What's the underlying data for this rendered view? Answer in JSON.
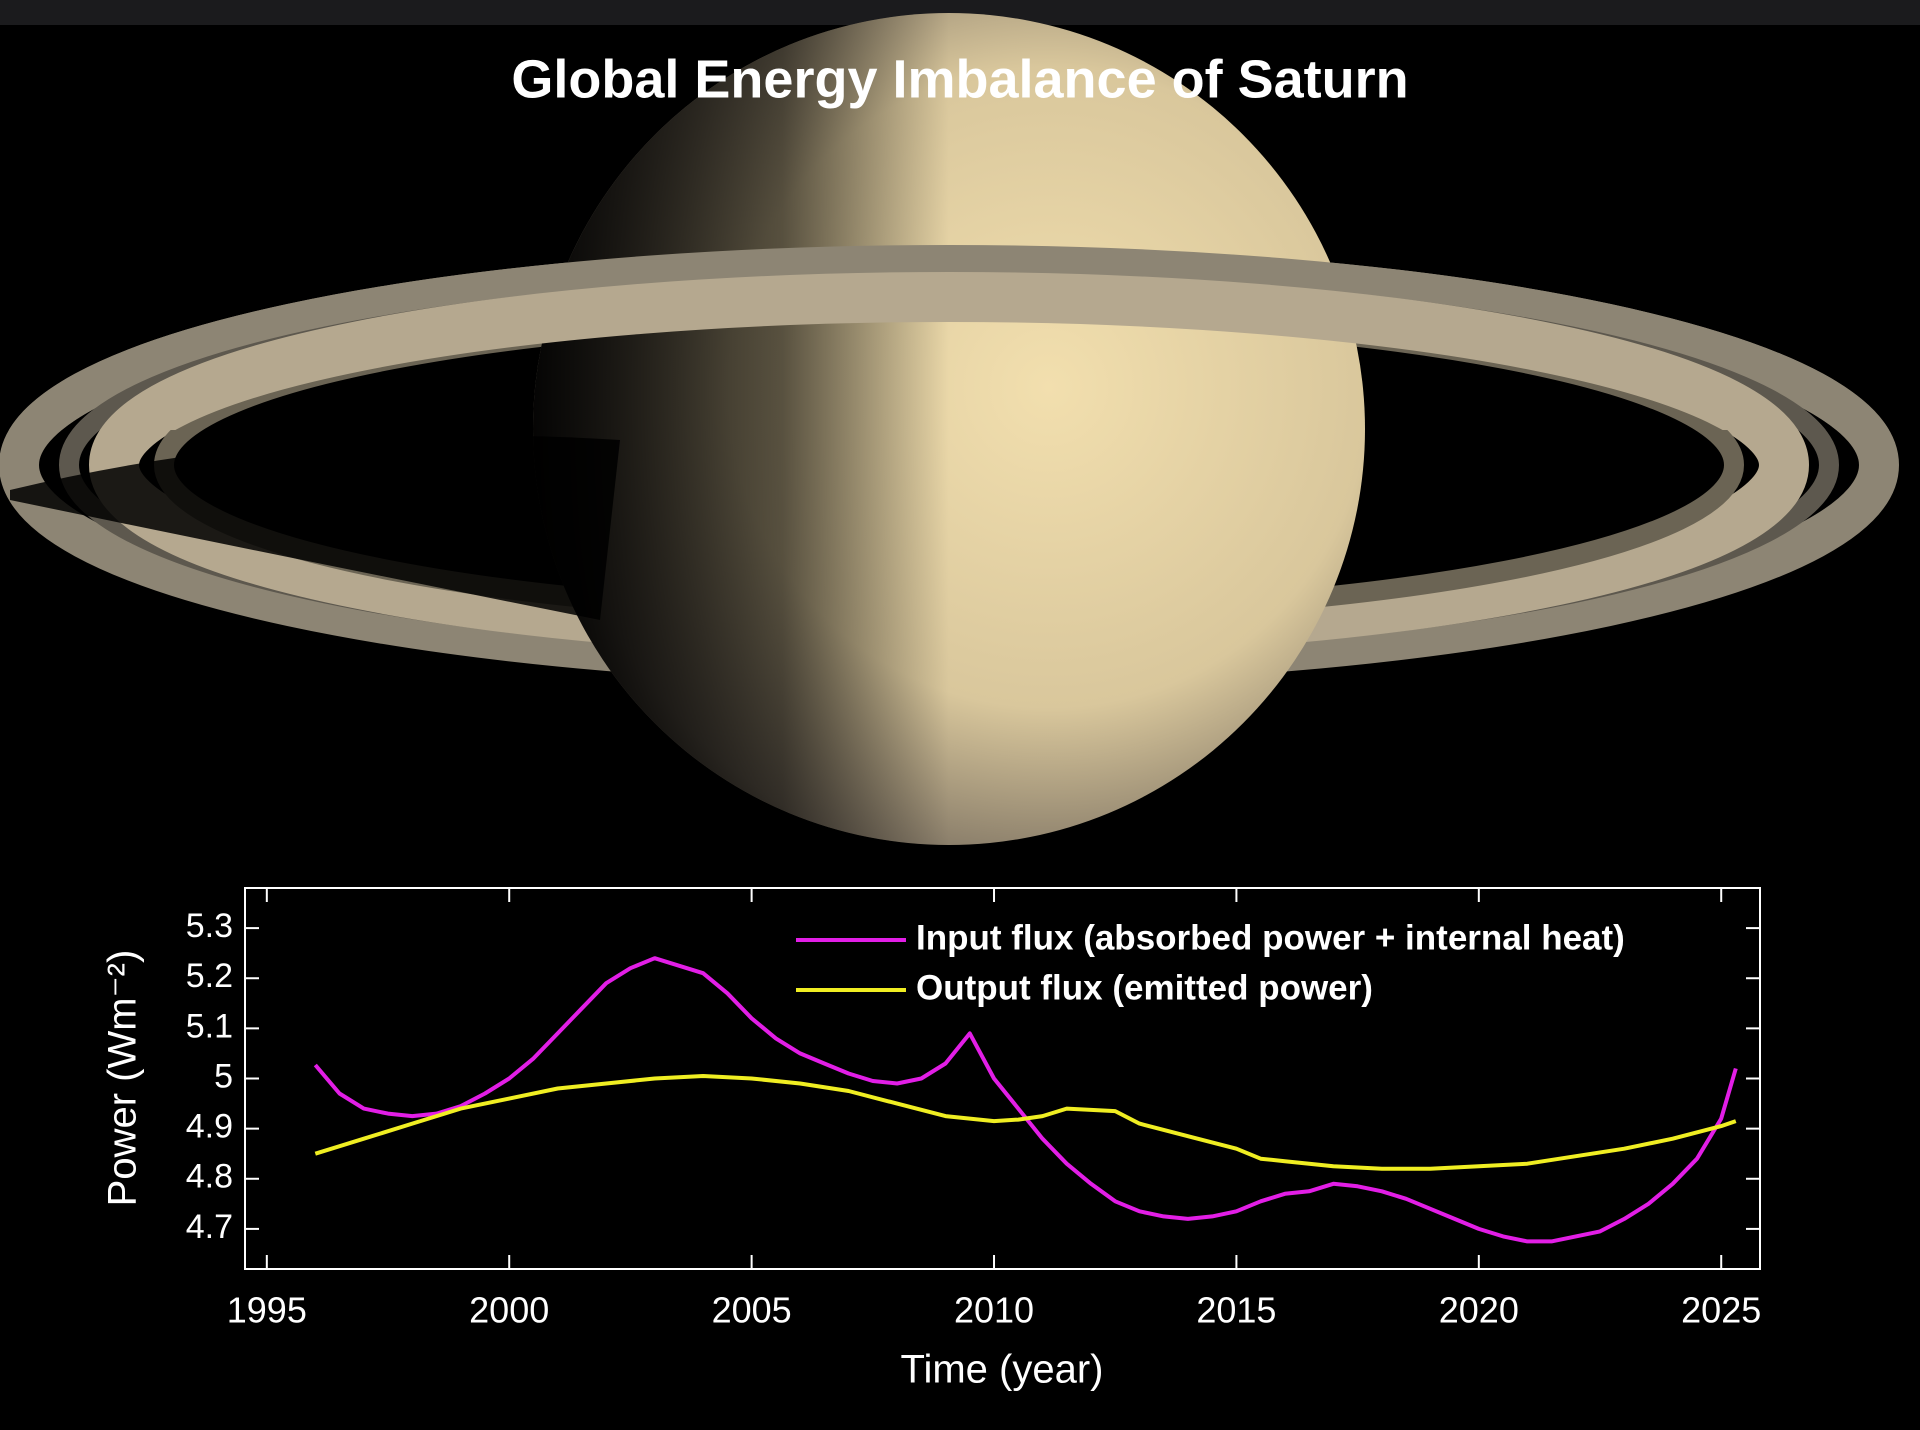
{
  "chart_data": {
    "type": "line",
    "title": "Global Energy Imbalance of Saturn",
    "x_label": "Time (year)",
    "y_label": "Power (Wm⁻²)",
    "xlim": [
      1994.55,
      2025.8
    ],
    "xticks": [
      1995,
      2000,
      2005,
      2010,
      2015,
      2020,
      2025
    ],
    "ylim": [
      4.62,
      5.38
    ],
    "yticks": [
      4.7,
      4.8,
      4.9,
      5,
      5.1,
      5.2,
      5.3
    ],
    "grid": false,
    "legend": "upper right",
    "series": [
      {
        "name": "Input flux (absorbed power + internal heat)",
        "color": "#e21ee6",
        "x": [
          1996,
          1996.5,
          1997,
          1997.5,
          1998,
          1998.5,
          1999,
          1999.5,
          2000,
          2000.5,
          2001,
          2001.5,
          2002,
          2002.5,
          2003,
          2003.5,
          2004,
          2004.5,
          2005,
          2005.5,
          2006,
          2006.5,
          2007,
          2007.5,
          2008,
          2008.5,
          2009,
          2009.5,
          2010,
          2010.5,
          2011,
          2011.5,
          2012,
          2012.5,
          2013,
          2013.5,
          2014,
          2014.5,
          2015,
          2015.5,
          2016,
          2016.5,
          2017,
          2017.5,
          2018,
          2018.5,
          2019,
          2019.5,
          2020,
          2020.5,
          2021,
          2021.5,
          2022,
          2022.5,
          2023,
          2023.5,
          2024,
          2024.5,
          2025,
          2025.3
        ],
        "values": [
          5.027,
          4.97,
          4.94,
          4.93,
          4.925,
          4.93,
          4.945,
          4.97,
          5.0,
          5.04,
          5.09,
          5.14,
          5.19,
          5.22,
          5.24,
          5.225,
          5.21,
          5.17,
          5.12,
          5.08,
          5.05,
          5.03,
          5.01,
          4.995,
          4.99,
          5.0,
          5.03,
          5.09,
          5.0,
          4.94,
          4.88,
          4.83,
          4.79,
          4.755,
          4.735,
          4.725,
          4.72,
          4.725,
          4.735,
          4.755,
          4.77,
          4.775,
          4.79,
          4.785,
          4.775,
          4.76,
          4.74,
          4.72,
          4.7,
          4.685,
          4.675,
          4.675,
          4.685,
          4.695,
          4.72,
          4.75,
          4.79,
          4.84,
          4.92,
          5.02
        ]
      },
      {
        "name": "Output flux (emitted power)",
        "color": "#f0ee22",
        "x": [
          1996,
          1997,
          1998,
          1999,
          2000,
          2001,
          2002,
          2003,
          2004,
          2005,
          2006,
          2007,
          2008,
          2009,
          2010,
          2010.5,
          2011,
          2011.5,
          2012.5,
          2013,
          2014,
          2015,
          2015.5,
          2016,
          2017,
          2018,
          2019,
          2020,
          2021,
          2022,
          2023,
          2024,
          2025,
          2025.3
        ],
        "values": [
          4.85,
          4.88,
          4.91,
          4.94,
          4.96,
          4.98,
          4.99,
          5.0,
          5.005,
          5.0,
          4.99,
          4.975,
          4.95,
          4.925,
          4.915,
          4.918,
          4.925,
          4.94,
          4.935,
          4.91,
          4.885,
          4.86,
          4.84,
          4.835,
          4.825,
          4.82,
          4.82,
          4.825,
          4.83,
          4.845,
          4.86,
          4.88,
          4.905,
          4.915
        ]
      }
    ]
  }
}
